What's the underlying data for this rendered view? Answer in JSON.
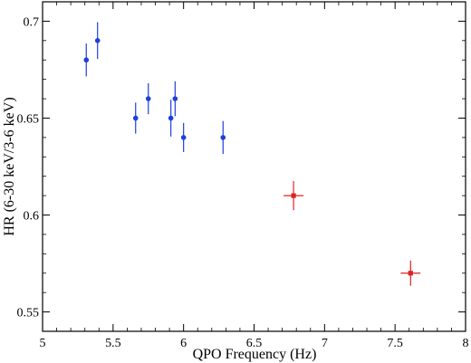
{
  "chart_data": {
    "type": "scatter",
    "xlabel": "QPO Frequency (Hz)",
    "ylabel": "HR (6-30 keV/3-6 keV)",
    "xlim": [
      5,
      8
    ],
    "ylim": [
      0.54,
      0.71
    ],
    "x_ticks": [
      5,
      5.5,
      6,
      6.5,
      7,
      7.5,
      8
    ],
    "x_tick_labels": [
      "5",
      "5.5",
      "6",
      "6.5",
      "7",
      "7.5",
      "8"
    ],
    "y_ticks": [
      0.55,
      0.6,
      0.65,
      0.7
    ],
    "y_tick_labels": [
      "0.55",
      "0.6",
      "0.65",
      "0.7"
    ],
    "grid": false,
    "series": [
      {
        "color": "#1f3fdc",
        "marker": "circle",
        "points": [
          {
            "x": 5.31,
            "y": 0.68,
            "yerr": 0.0085,
            "xerr": 0
          },
          {
            "x": 5.39,
            "y": 0.69,
            "yerr": 0.0095,
            "xerr": 0
          },
          {
            "x": 5.66,
            "y": 0.65,
            "yerr": 0.008,
            "xerr": 0
          },
          {
            "x": 5.75,
            "y": 0.66,
            "yerr": 0.008,
            "xerr": 0
          },
          {
            "x": 5.91,
            "y": 0.65,
            "yerr": 0.0095,
            "xerr": 0
          },
          {
            "x": 5.94,
            "y": 0.66,
            "yerr": 0.009,
            "xerr": 0
          },
          {
            "x": 6.0,
            "y": 0.64,
            "yerr": 0.0075,
            "xerr": 0
          },
          {
            "x": 6.28,
            "y": 0.64,
            "yerr": 0.0085,
            "xerr": 0
          }
        ]
      },
      {
        "color": "#e02020",
        "marker": "square",
        "points": [
          {
            "x": 6.78,
            "y": 0.61,
            "yerr": 0.0075,
            "xerr": 0.07
          },
          {
            "x": 7.61,
            "y": 0.57,
            "yerr": 0.0065,
            "xerr": 0.07
          }
        ]
      }
    ]
  }
}
